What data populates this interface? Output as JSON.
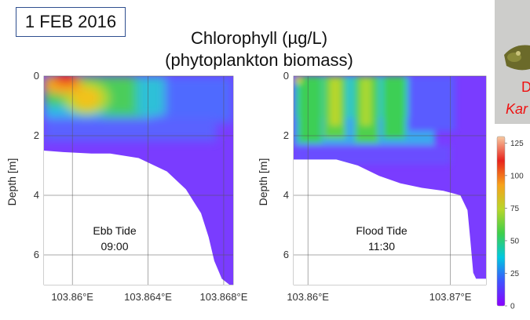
{
  "date_label": "1 FEB 2016",
  "title_line1": "Chlorophyll (µg/L)",
  "title_line2": "(phytoplankton biomass)",
  "photo_caption": {
    "line1": "D",
    "line2": "Kar"
  },
  "colorbar": {
    "ticks": [
      0,
      25,
      50,
      75,
      100,
      125
    ],
    "range": [
      0,
      130
    ],
    "colors": [
      "#8b00ff",
      "#3f51ff",
      "#00c8e0",
      "#3ecf4a",
      "#b8d62a",
      "#f7a21b",
      "#e8231c",
      "#f7c9a0"
    ]
  },
  "chart_data": [
    {
      "type": "heatmap",
      "annotation": [
        "Ebb Tide",
        "09:00"
      ],
      "ylabel": "Depth [m]",
      "xlim": [
        103.8585,
        103.8685
      ],
      "ylim": [
        0,
        7
      ],
      "y_reversed": true,
      "x_ticks": [
        103.86,
        103.864,
        103.868
      ],
      "x_tick_labels": [
        "103.86°E",
        "103.864°E",
        "103.868°E"
      ],
      "y_ticks": [
        0,
        2,
        4,
        6
      ],
      "grid": true,
      "bottom_profile": [
        [
          103.8585,
          2.5
        ],
        [
          103.8595,
          2.55
        ],
        [
          103.861,
          2.6
        ],
        [
          103.862,
          2.6
        ],
        [
          103.8635,
          2.75
        ],
        [
          103.865,
          3.2
        ],
        [
          103.866,
          3.8
        ],
        [
          103.8668,
          4.6
        ],
        [
          103.8672,
          5.4
        ],
        [
          103.8675,
          6.2
        ],
        [
          103.8679,
          6.8
        ],
        [
          103.8683,
          7.0
        ]
      ]
    },
    {
      "type": "heatmap",
      "annotation": [
        "Flood Tide",
        "11:30"
      ],
      "ylabel": "Depth [m]",
      "xlim": [
        103.859,
        103.8725
      ],
      "ylim": [
        0,
        7
      ],
      "y_reversed": true,
      "x_ticks": [
        103.86,
        103.87
      ],
      "x_tick_labels": [
        "103.86°E",
        "103.87°E"
      ],
      "y_ticks": [
        0,
        2,
        4,
        6
      ],
      "grid": true,
      "bottom_profile": [
        [
          103.859,
          2.8
        ],
        [
          103.8605,
          2.8
        ],
        [
          103.862,
          2.8
        ],
        [
          103.8635,
          3.0
        ],
        [
          103.865,
          3.35
        ],
        [
          103.8665,
          3.6
        ],
        [
          103.868,
          3.75
        ],
        [
          103.8695,
          3.85
        ],
        [
          103.8707,
          4.0
        ],
        [
          103.8712,
          4.5
        ],
        [
          103.8714,
          5.5
        ],
        [
          103.8716,
          6.6
        ],
        [
          103.8718,
          6.8
        ]
      ]
    }
  ]
}
